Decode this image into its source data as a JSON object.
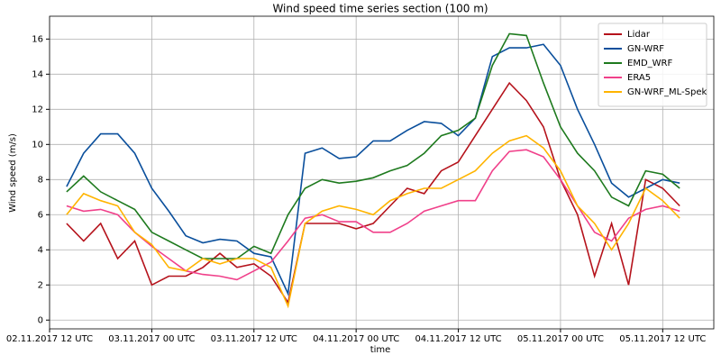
{
  "chart_data": {
    "type": "line",
    "title": "Wind speed time series section (100 m)",
    "x_label": "time",
    "y_label": "Wind speed (m/s)",
    "x": [
      "2017-11-02T14:00",
      "2017-11-02T16:00",
      "2017-11-02T18:00",
      "2017-11-02T20:00",
      "2017-11-02T22:00",
      "2017-11-03T00:00",
      "2017-11-03T02:00",
      "2017-11-03T04:00",
      "2017-11-03T06:00",
      "2017-11-03T08:00",
      "2017-11-03T10:00",
      "2017-11-03T12:00",
      "2017-11-03T14:00",
      "2017-11-03T16:00",
      "2017-11-03T18:00",
      "2017-11-03T20:00",
      "2017-11-03T22:00",
      "2017-11-04T00:00",
      "2017-11-04T02:00",
      "2017-11-04T04:00",
      "2017-11-04T06:00",
      "2017-11-04T08:00",
      "2017-11-04T10:00",
      "2017-11-04T12:00",
      "2017-11-04T14:00",
      "2017-11-04T16:00",
      "2017-11-04T18:00",
      "2017-11-04T20:00",
      "2017-11-04T22:00",
      "2017-11-05T00:00",
      "2017-11-05T02:00",
      "2017-11-05T04:00",
      "2017-11-05T06:00",
      "2017-11-05T08:00",
      "2017-11-05T10:00",
      "2017-11-05T12:00",
      "2017-11-05T14:00"
    ],
    "series": [
      {
        "name": "Lidar",
        "color": "#b5121b",
        "values": [
          5.5,
          4.5,
          5.5,
          3.5,
          4.5,
          2.0,
          2.5,
          2.5,
          3.0,
          3.8,
          3.0,
          3.2,
          2.5,
          1.0,
          5.5,
          5.5,
          5.5,
          5.2,
          5.5,
          6.5,
          7.5,
          7.2,
          8.5,
          9.0,
          10.5,
          12.0,
          13.5,
          12.5,
          11.0,
          8.0,
          6.0,
          2.5,
          5.5,
          2.0,
          8.0,
          7.5,
          6.5
        ]
      },
      {
        "name": "GN-WRF",
        "color": "#0a4f9c",
        "values": [
          7.6,
          9.5,
          10.6,
          10.6,
          9.5,
          7.5,
          6.2,
          4.8,
          4.4,
          4.6,
          4.5,
          3.8,
          3.6,
          1.5,
          9.5,
          9.8,
          9.2,
          9.3,
          10.2,
          10.2,
          10.8,
          11.3,
          11.2,
          10.5,
          11.5,
          15.0,
          15.5,
          15.5,
          15.7,
          14.5,
          12.0,
          10.0,
          7.8,
          7.0,
          7.5,
          8.0,
          7.8
        ]
      },
      {
        "name": "EMD_WRF",
        "color": "#1e7a1e",
        "values": [
          7.3,
          8.2,
          7.3,
          6.8,
          6.3,
          5.0,
          4.5,
          4.0,
          3.5,
          3.5,
          3.5,
          4.2,
          3.8,
          6.0,
          7.5,
          8.0,
          7.8,
          7.9,
          8.1,
          8.5,
          8.8,
          9.5,
          10.5,
          10.8,
          11.5,
          14.5,
          16.3,
          16.2,
          13.5,
          11.0,
          9.5,
          8.5,
          7.0,
          6.5,
          8.5,
          8.3,
          7.5
        ]
      },
      {
        "name": "ERA5",
        "color": "#f0408a",
        "values": [
          6.5,
          6.2,
          6.3,
          6.0,
          5.0,
          4.2,
          3.5,
          2.8,
          2.6,
          2.5,
          2.3,
          2.8,
          3.3,
          4.5,
          5.8,
          6.0,
          5.6,
          5.6,
          5.0,
          5.0,
          5.5,
          6.2,
          6.5,
          6.8,
          6.8,
          8.5,
          9.6,
          9.7,
          9.3,
          8.0,
          6.5,
          5.0,
          4.5,
          5.8,
          6.3,
          6.5,
          6.2
        ]
      },
      {
        "name": "GN-WRF_ML-Spek",
        "color": "#ffb400",
        "values": [
          6.0,
          7.2,
          6.8,
          6.5,
          5.0,
          4.3,
          3.0,
          2.8,
          3.5,
          3.2,
          3.5,
          3.5,
          3.0,
          0.8,
          5.5,
          6.2,
          6.5,
          6.3,
          6.0,
          6.8,
          7.2,
          7.5,
          7.5,
          8.0,
          8.5,
          9.5,
          10.2,
          10.5,
          9.8,
          8.5,
          6.5,
          5.5,
          4.0,
          5.5,
          7.5,
          6.8,
          5.8
        ]
      }
    ],
    "xlim": [
      "2017-11-02T12:00",
      "2017-11-05T18:00"
    ],
    "xticks": [
      {
        "value": "2017-11-02T12:00",
        "label": "02.11.2017 12 UTC"
      },
      {
        "value": "2017-11-03T00:00",
        "label": "03.11.2017 00 UTC"
      },
      {
        "value": "2017-11-03T12:00",
        "label": "03.11.2017 12 UTC"
      },
      {
        "value": "2017-11-04T00:00",
        "label": "04.11.2017 00 UTC"
      },
      {
        "value": "2017-11-04T12:00",
        "label": "04.11.2017 12 UTC"
      },
      {
        "value": "2017-11-05T00:00",
        "label": "05.11.2017 00 UTC"
      },
      {
        "value": "2017-11-05T12:00",
        "label": "05.11.2017 12 UTC"
      }
    ],
    "ylim": [
      -0.5,
      17.3
    ],
    "yticks": [
      0,
      2,
      4,
      6,
      8,
      10,
      12,
      14,
      16
    ],
    "grid": true,
    "legend": "upper right"
  }
}
